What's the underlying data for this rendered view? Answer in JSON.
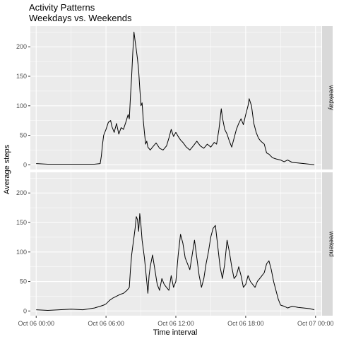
{
  "chart_data": {
    "type": "line",
    "title": "Activity Patterns",
    "subtitle": "Weekdays vs. Weekends",
    "xlabel": "Time interval",
    "ylabel": "Average steps",
    "x_unit": "hour of Oct 06",
    "xlim": [
      -0.5,
      24.5
    ],
    "ylim": [
      -8,
      235
    ],
    "y_ticks": [
      0,
      50,
      100,
      150,
      200
    ],
    "x_ticks": [
      {
        "value": 0,
        "label": "Oct 06 00:00"
      },
      {
        "value": 6,
        "label": "Oct 06 06:00"
      },
      {
        "value": 12,
        "label": "Oct 06 12:00"
      },
      {
        "value": 18,
        "label": "Oct 06 18:00"
      },
      {
        "value": 24,
        "label": "Oct 07 00:00"
      }
    ],
    "grid": true,
    "facets": [
      {
        "label": "weekday",
        "points": [
          [
            0,
            2
          ],
          [
            1,
            1
          ],
          [
            2,
            1
          ],
          [
            3,
            1
          ],
          [
            4,
            1
          ],
          [
            5,
            1
          ],
          [
            5.5,
            2
          ],
          [
            5.6,
            15
          ],
          [
            5.7,
            35
          ],
          [
            5.8,
            50
          ],
          [
            6.0,
            60
          ],
          [
            6.2,
            72
          ],
          [
            6.4,
            75
          ],
          [
            6.5,
            65
          ],
          [
            6.7,
            55
          ],
          [
            6.9,
            70
          ],
          [
            7.1,
            52
          ],
          [
            7.3,
            63
          ],
          [
            7.5,
            60
          ],
          [
            7.7,
            72
          ],
          [
            7.9,
            85
          ],
          [
            8.0,
            78
          ],
          [
            8.1,
            115
          ],
          [
            8.2,
            150
          ],
          [
            8.3,
            190
          ],
          [
            8.4,
            225
          ],
          [
            8.5,
            210
          ],
          [
            8.6,
            195
          ],
          [
            8.7,
            180
          ],
          [
            8.8,
            160
          ],
          [
            8.9,
            130
          ],
          [
            9.0,
            100
          ],
          [
            9.1,
            105
          ],
          [
            9.2,
            75
          ],
          [
            9.3,
            55
          ],
          [
            9.4,
            35
          ],
          [
            9.5,
            40
          ],
          [
            9.6,
            30
          ],
          [
            9.8,
            25
          ],
          [
            10.0,
            30
          ],
          [
            10.3,
            37
          ],
          [
            10.6,
            28
          ],
          [
            10.9,
            25
          ],
          [
            11.2,
            32
          ],
          [
            11.4,
            45
          ],
          [
            11.6,
            60
          ],
          [
            11.8,
            48
          ],
          [
            12.0,
            55
          ],
          [
            12.2,
            48
          ],
          [
            12.4,
            42
          ],
          [
            12.6,
            38
          ],
          [
            12.9,
            30
          ],
          [
            13.2,
            25
          ],
          [
            13.5,
            32
          ],
          [
            13.8,
            40
          ],
          [
            14.1,
            32
          ],
          [
            14.4,
            28
          ],
          [
            14.7,
            35
          ],
          [
            15.0,
            30
          ],
          [
            15.3,
            38
          ],
          [
            15.5,
            35
          ],
          [
            15.7,
            60
          ],
          [
            15.9,
            95
          ],
          [
            16.0,
            80
          ],
          [
            16.2,
            60
          ],
          [
            16.4,
            52
          ],
          [
            16.6,
            40
          ],
          [
            16.8,
            30
          ],
          [
            17.0,
            45
          ],
          [
            17.2,
            60
          ],
          [
            17.4,
            70
          ],
          [
            17.6,
            78
          ],
          [
            17.8,
            68
          ],
          [
            18.0,
            85
          ],
          [
            18.2,
            100
          ],
          [
            18.3,
            112
          ],
          [
            18.5,
            100
          ],
          [
            18.7,
            70
          ],
          [
            18.9,
            55
          ],
          [
            19.1,
            45
          ],
          [
            19.3,
            40
          ],
          [
            19.6,
            35
          ],
          [
            19.8,
            20
          ],
          [
            20.0,
            18
          ],
          [
            20.3,
            12
          ],
          [
            20.6,
            10
          ],
          [
            21.0,
            8
          ],
          [
            21.3,
            5
          ],
          [
            21.6,
            8
          ],
          [
            22.0,
            4
          ],
          [
            22.5,
            3
          ],
          [
            23.0,
            2
          ],
          [
            23.5,
            1
          ],
          [
            23.9,
            0
          ]
        ]
      },
      {
        "label": "weekend",
        "points": [
          [
            0,
            2
          ],
          [
            1,
            1
          ],
          [
            2,
            2
          ],
          [
            3,
            3
          ],
          [
            4,
            2
          ],
          [
            5,
            5
          ],
          [
            5.5,
            8
          ],
          [
            5.8,
            10
          ],
          [
            6.0,
            12
          ],
          [
            6.3,
            18
          ],
          [
            6.6,
            22
          ],
          [
            6.9,
            25
          ],
          [
            7.2,
            28
          ],
          [
            7.5,
            30
          ],
          [
            7.8,
            35
          ],
          [
            8.0,
            40
          ],
          [
            8.1,
            70
          ],
          [
            8.2,
            95
          ],
          [
            8.3,
            110
          ],
          [
            8.4,
            125
          ],
          [
            8.5,
            140
          ],
          [
            8.6,
            160
          ],
          [
            8.7,
            155
          ],
          [
            8.8,
            135
          ],
          [
            8.9,
            165
          ],
          [
            9.0,
            145
          ],
          [
            9.1,
            120
          ],
          [
            9.3,
            90
          ],
          [
            9.5,
            50
          ],
          [
            9.6,
            30
          ],
          [
            9.7,
            60
          ],
          [
            9.8,
            75
          ],
          [
            10.0,
            95
          ],
          [
            10.2,
            70
          ],
          [
            10.4,
            45
          ],
          [
            10.6,
            35
          ],
          [
            10.8,
            55
          ],
          [
            11.0,
            45
          ],
          [
            11.2,
            40
          ],
          [
            11.4,
            35
          ],
          [
            11.6,
            60
          ],
          [
            11.8,
            40
          ],
          [
            12.0,
            50
          ],
          [
            12.2,
            95
          ],
          [
            12.4,
            130
          ],
          [
            12.6,
            115
          ],
          [
            12.8,
            90
          ],
          [
            13.0,
            80
          ],
          [
            13.2,
            70
          ],
          [
            13.4,
            95
          ],
          [
            13.6,
            120
          ],
          [
            13.8,
            90
          ],
          [
            14.0,
            60
          ],
          [
            14.2,
            40
          ],
          [
            14.4,
            55
          ],
          [
            14.6,
            80
          ],
          [
            14.8,
            100
          ],
          [
            15.0,
            125
          ],
          [
            15.2,
            140
          ],
          [
            15.4,
            145
          ],
          [
            15.6,
            110
          ],
          [
            15.8,
            75
          ],
          [
            16.0,
            55
          ],
          [
            16.2,
            80
          ],
          [
            16.4,
            120
          ],
          [
            16.6,
            100
          ],
          [
            16.8,
            75
          ],
          [
            17.0,
            55
          ],
          [
            17.2,
            60
          ],
          [
            17.4,
            75
          ],
          [
            17.6,
            60
          ],
          [
            17.8,
            40
          ],
          [
            18.0,
            45
          ],
          [
            18.2,
            60
          ],
          [
            18.4,
            50
          ],
          [
            18.6,
            45
          ],
          [
            18.8,
            40
          ],
          [
            19.0,
            50
          ],
          [
            19.2,
            55
          ],
          [
            19.4,
            60
          ],
          [
            19.6,
            65
          ],
          [
            19.8,
            80
          ],
          [
            20.0,
            85
          ],
          [
            20.2,
            70
          ],
          [
            20.4,
            50
          ],
          [
            20.6,
            35
          ],
          [
            20.8,
            20
          ],
          [
            21.0,
            10
          ],
          [
            21.3,
            8
          ],
          [
            21.6,
            5
          ],
          [
            22.0,
            8
          ],
          [
            22.5,
            6
          ],
          [
            23.0,
            5
          ],
          [
            23.5,
            4
          ],
          [
            23.9,
            2
          ]
        ]
      }
    ]
  }
}
